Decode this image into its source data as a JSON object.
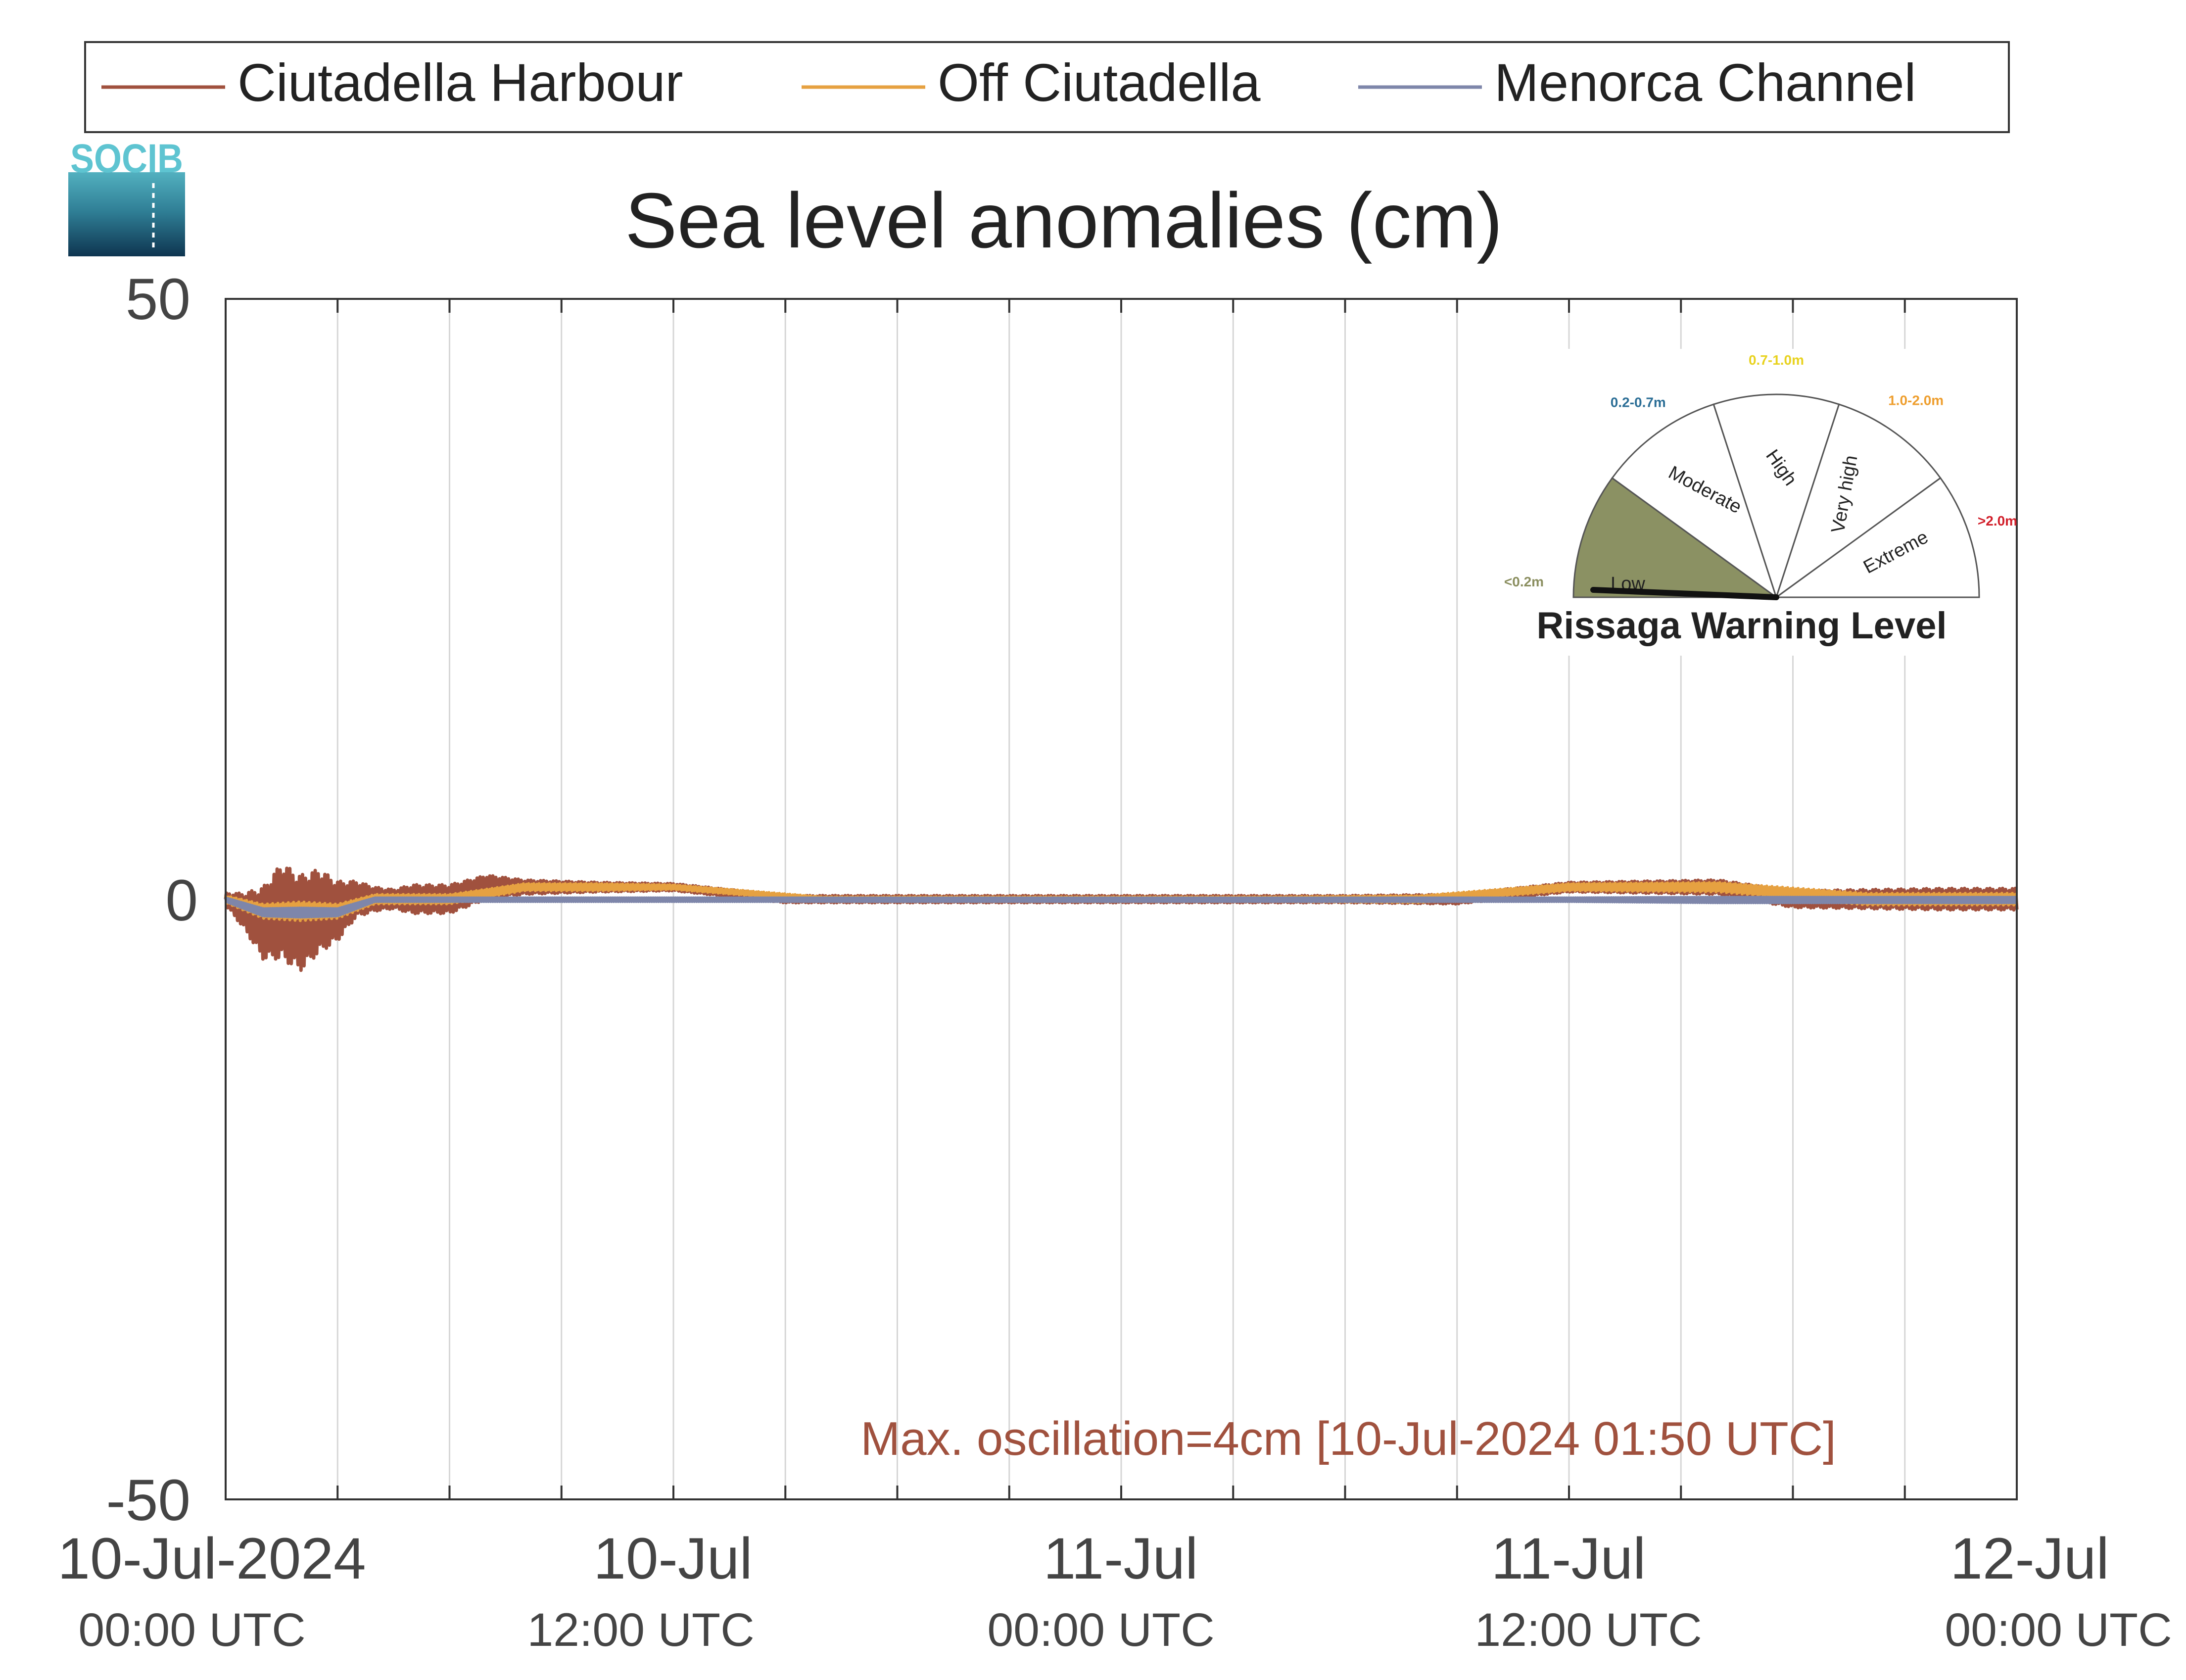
{
  "chart_data": {
    "type": "line",
    "title": "Sea level anomalies (cm)",
    "xlabel": "",
    "ylabel": "",
    "ylim": [
      -50,
      50
    ],
    "yticks": [
      -50,
      0,
      50
    ],
    "xlim_hours": [
      0,
      48
    ],
    "xticks_major": [
      {
        "hour": 0,
        "date": "10-Jul-2024",
        "time": "00:00 UTC"
      },
      {
        "hour": 12,
        "date": "10-Jul",
        "time": "12:00 UTC"
      },
      {
        "hour": 24,
        "date": "11-Jul",
        "time": "00:00 UTC"
      },
      {
        "hour": 36,
        "date": "11-Jul",
        "time": "12:00 UTC"
      },
      {
        "hour": 48,
        "date": "12-Jul",
        "time": "00:00 UTC"
      }
    ],
    "grid": "vertical every 3 hours",
    "legend_position": "top",
    "series": [
      {
        "name": "Ciutadella Harbour",
        "color": "#a0513e",
        "x": [
          0,
          0.5,
          1,
          1.5,
          2,
          2.5,
          3,
          3.5,
          4,
          4.5,
          5,
          6,
          7,
          8,
          9,
          10,
          12,
          15,
          18,
          21,
          24,
          27,
          30,
          33,
          36,
          38,
          40,
          42,
          44,
          46,
          47,
          48
        ],
        "y": [
          0,
          -1,
          -2,
          -1,
          -2,
          -1,
          -1,
          0,
          0,
          0,
          0,
          0,
          1,
          1,
          1,
          1,
          1,
          0,
          0,
          0,
          0,
          0,
          0,
          0,
          1,
          1,
          1,
          0,
          0,
          0,
          0,
          0
        ],
        "oscillation_amplitude": [
          0.5,
          1.5,
          3,
          4,
          4,
          3.5,
          2.5,
          1.5,
          1,
          0.8,
          1.2,
          1.2,
          1,
          0.6,
          0.5,
          0.4,
          0.3,
          0.3,
          0.3,
          0.3,
          0.3,
          0.3,
          0.3,
          0.4,
          0.4,
          0.5,
          0.6,
          0.7,
          0.8,
          0.9,
          0.9,
          0.9
        ]
      },
      {
        "name": "Off Ciutadella",
        "color": "#e6a141",
        "x": [
          0,
          1,
          2,
          3,
          4,
          6,
          8,
          10,
          12,
          16,
          20,
          24,
          28,
          32,
          36,
          40,
          44,
          48
        ],
        "y": [
          0,
          -1,
          -1,
          -1,
          0,
          0,
          1,
          1,
          1,
          0,
          0,
          0,
          0,
          0,
          1,
          1,
          0,
          0
        ],
        "oscillation_amplitude": [
          0.3,
          0.6,
          0.8,
          0.6,
          0.4,
          0.4,
          0.3,
          0.3,
          0.2,
          0.2,
          0.2,
          0.2,
          0.2,
          0.3,
          0.3,
          0.4,
          0.5,
          0.5
        ]
      },
      {
        "name": "Menorca Channel",
        "color": "#7e86aa",
        "x": [
          0,
          1,
          2,
          3,
          4,
          6,
          8,
          10,
          12,
          16,
          20,
          24,
          28,
          32,
          36,
          40,
          44,
          48
        ],
        "y": [
          0,
          -1,
          -1,
          -1,
          0,
          0,
          0,
          0,
          0,
          0,
          0,
          0,
          0,
          0,
          0,
          0,
          0,
          0
        ],
        "oscillation_amplitude": [
          0.2,
          0.4,
          0.5,
          0.4,
          0.2,
          0.2,
          0.2,
          0.2,
          0.2,
          0.2,
          0.2,
          0.2,
          0.2,
          0.2,
          0.2,
          0.3,
          0.3,
          0.3
        ]
      }
    ],
    "annotation": {
      "text": "Max. oscillation=4cm [10-Jul-2024 01:50 UTC]",
      "color": "#a0513e"
    }
  },
  "logo": {
    "text": "SOCIB"
  },
  "gauge": {
    "title": "Rissaga Warning Level",
    "current_level": "Low",
    "sectors": [
      {
        "name": "Low",
        "range_label": "<0.2m",
        "label_color": "#8b8f60",
        "fill": "#8b9163"
      },
      {
        "name": "Moderate",
        "range_label": "0.2-0.7m",
        "label_color": "#2b6e96",
        "fill": "#ffffff"
      },
      {
        "name": "High",
        "range_label": "0.7-1.0m",
        "label_color": "#e8d21f",
        "fill": "#ffffff"
      },
      {
        "name": "Very high",
        "range_label": "1.0-2.0m",
        "label_color": "#ee9e2e",
        "fill": "#ffffff"
      },
      {
        "name": "Extreme",
        "range_label": ">2.0m",
        "label_color": "#d11f2a",
        "fill": "#ffffff"
      }
    ]
  }
}
